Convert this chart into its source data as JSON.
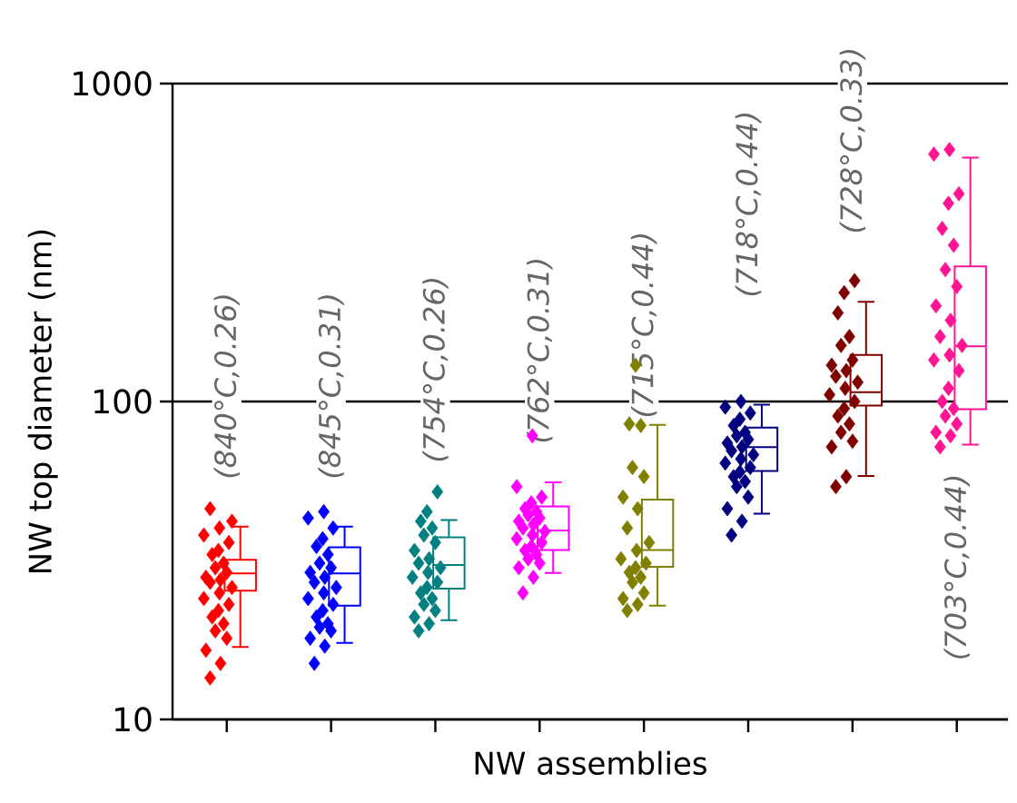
{
  "chart_data": {
    "type": "box",
    "xlabel": "NW assemblies",
    "ylabel": "NW top diameter (nm)",
    "categories": [
      null,
      null,
      null,
      null,
      null,
      null,
      null,
      null
    ],
    "ylim": [
      10,
      1000
    ],
    "yticks": [
      10,
      100,
      1000
    ],
    "log": true,
    "grid": "y",
    "tick_labels": "y",
    "marker": "diamond",
    "colors": [
      "#ff0000",
      "#0000ff",
      "#008080",
      "#ff00ff",
      "#808000",
      "#000080",
      "#800000",
      "#ff1493"
    ],
    "boxes": [
      {
        "low": 16.9,
        "q1": 25.4,
        "median": 28.8,
        "q3": 31.8,
        "high": 40.4
      },
      {
        "low": 17.4,
        "q1": 22.8,
        "median": 28.8,
        "q3": 34.8,
        "high": 40.4
      },
      {
        "low": 20.5,
        "q1": 25.8,
        "median": 30.6,
        "q3": 37.4,
        "high": 42.4
      },
      {
        "low": 28.9,
        "q1": 34.1,
        "median": 39.3,
        "q3": 46.8,
        "high": 55.7
      },
      {
        "low": 22.8,
        "q1": 30.2,
        "median": 34.1,
        "q3": 49.1,
        "high": 84.4
      },
      {
        "low": 44.4,
        "q1": 60.4,
        "median": 71.9,
        "q3": 82.8,
        "high": 97.7
      },
      {
        "low": 58.3,
        "q1": 97,
        "median": 107,
        "q3": 140,
        "high": 206
      },
      {
        "low": 73.2,
        "q1": 94.5,
        "median": 149,
        "q3": 266,
        "high": 585
      }
    ],
    "series": [
      {
        "type": "scatter",
        "colors": [
          "#ff0000",
          "#0000ff",
          "#008080",
          "#ff00ff",
          "#808000",
          "#000080",
          "#800000",
          "#ff1493"
        ],
        "values": [
          13.5,
          15,
          19,
          25,
          22,
          38,
          54,
          72
        ]
      },
      {
        "type": "scatter",
        "colors": [
          "#ff0000",
          "#0000ff",
          "#008080",
          "#ff00ff",
          "#808000",
          "#000080",
          "#800000",
          "#ff1493"
        ],
        "values": [
          15,
          17,
          20,
          28,
          23,
          42,
          58,
          78
        ]
      },
      {
        "type": "scatter",
        "colors": [
          "#ff0000",
          "#0000ff",
          "#008080",
          "#ff00ff",
          "#808000",
          "#000080",
          "#800000",
          "#ff1493"
        ],
        "values": [
          16.5,
          18,
          21,
          30,
          24,
          46,
          72,
          80
        ]
      },
      {
        "type": "scatter",
        "colors": [
          "#ff0000",
          "#0000ff",
          "#008080",
          "#ff00ff",
          "#808000",
          "#000080",
          "#800000",
          "#ff1493"
        ],
        "values": [
          18,
          19,
          22,
          31,
          25,
          50,
          75,
          85
        ]
      },
      {
        "type": "scatter",
        "colors": [
          "#ff0000",
          "#0000ff",
          "#008080",
          "#ff00ff",
          "#808000",
          "#000080",
          "#800000",
          "#ff1493"
        ],
        "values": [
          19,
          19.5,
          23,
          32,
          27,
          54,
          80,
          90
        ]
      },
      {
        "type": "scatter",
        "colors": [
          "#ff0000",
          "#0000ff",
          "#008080",
          "#ff00ff",
          "#808000",
          "#000080",
          "#800000",
          "#ff1493"
        ],
        "values": [
          20,
          20,
          24,
          33,
          28,
          56,
          85,
          95
        ]
      },
      {
        "type": "scatter",
        "colors": [
          "#ff0000",
          "#0000ff",
          "#008080",
          "#ff00ff",
          "#808000",
          "#000080",
          "#800000",
          "#ff1493"
        ],
        "values": [
          21,
          21,
          25,
          34,
          29,
          58,
          90,
          100
        ]
      },
      {
        "type": "scatter",
        "colors": [
          "#ff0000",
          "#0000ff",
          "#008080",
          "#ff00ff",
          "#808000",
          "#000080",
          "#800000",
          "#ff1493"
        ],
        "values": [
          22,
          22,
          26,
          35,
          30,
          60,
          95,
          110
        ]
      },
      {
        "type": "scatter",
        "colors": [
          "#ff0000",
          "#0000ff",
          "#008080",
          "#ff00ff",
          "#808000",
          "#000080",
          "#800000",
          "#ff1493"
        ],
        "values": [
          23,
          23,
          27,
          36,
          31,
          62,
          100,
          125
        ]
      },
      {
        "type": "scatter",
        "colors": [
          "#ff0000",
          "#0000ff",
          "#008080",
          "#ff00ff",
          "#808000",
          "#000080",
          "#800000",
          "#ff1493"
        ],
        "values": [
          24,
          24,
          28,
          37,
          32,
          64,
          105,
          135
        ]
      },
      {
        "type": "scatter",
        "colors": [
          "#ff0000",
          "#0000ff",
          "#008080",
          "#ff00ff",
          "#808000",
          "#000080",
          "#800000",
          "#ff1493"
        ],
        "values": [
          25,
          25,
          29,
          38,
          34,
          66,
          110,
          140
        ]
      },
      {
        "type": "scatter",
        "colors": [
          "#ff0000",
          "#0000ff",
          "#008080",
          "#ff00ff",
          "#808000",
          "#000080",
          "#800000",
          "#ff1493"
        ],
        "values": [
          26,
          26,
          30,
          39,
          36,
          68,
          115,
          150
        ]
      },
      {
        "type": "scatter",
        "colors": [
          "#ff0000",
          "#0000ff",
          "#008080",
          "#ff00ff",
          "#808000",
          "#000080",
          "#800000",
          "#ff1493"
        ],
        "values": [
          27,
          27,
          31,
          40,
          40,
          70,
          120,
          160
        ]
      },
      {
        "type": "scatter",
        "colors": [
          "#ff0000",
          "#0000ff",
          "#008080",
          "#ff00ff",
          "#808000",
          "#000080",
          "#800000",
          "#ff1493"
        ],
        "values": [
          27.5,
          28,
          32,
          41,
          46,
          72,
          125,
          180
        ]
      },
      {
        "type": "scatter",
        "colors": [
          "#ff0000",
          "#0000ff",
          "#008080",
          "#ff00ff",
          "#808000",
          "#000080",
          "#800000",
          "#ff1493"
        ],
        "values": [
          28,
          29,
          34,
          42,
          50,
          74,
          130,
          200
        ]
      },
      {
        "type": "scatter",
        "colors": [
          "#ff0000",
          "#0000ff",
          "#008080",
          "#ff00ff",
          "#808000",
          "#000080",
          "#800000",
          "#ff1493"
        ],
        "values": [
          29,
          30,
          36,
          43,
          58,
          76,
          135,
          230
        ]
      },
      {
        "type": "scatter",
        "colors": [
          "#ff0000",
          "#0000ff",
          "#008080",
          "#ff00ff",
          "#808000",
          "#000080",
          "#800000",
          "#ff1493"
        ],
        "values": [
          30,
          31,
          38,
          44,
          62,
          78,
          150,
          260
        ]
      },
      {
        "type": "scatter",
        "colors": [
          "#ff0000",
          "#0000ff",
          "#008080",
          "#ff00ff",
          "#808000",
          "#000080",
          "#800000",
          "#ff1493"
        ],
        "values": [
          31,
          33,
          40,
          45,
          84,
          80,
          160,
          310
        ]
      },
      {
        "type": "scatter",
        "colors": [
          "#ff0000",
          "#0000ff",
          "#008080",
          "#ff00ff",
          "#808000",
          "#000080",
          "#800000",
          "#ff1493"
        ],
        "values": [
          33,
          35,
          42,
          46,
          85,
          84,
          190,
          350
        ]
      },
      {
        "type": "scatter",
        "colors": [
          "#ff0000",
          "#0000ff",
          "#008080",
          "#ff00ff",
          "#808000",
          "#000080",
          "#800000",
          "#ff1493"
        ],
        "values": [
          34,
          37,
          45,
          48,
          130,
          88,
          220,
          420
        ]
      },
      {
        "type": "scatter",
        "colors": [
          "#ff0000",
          "#0000ff",
          "#008080",
          "#ff00ff",
          "#808000",
          "#000080",
          "#800000",
          "#ff1493"
        ],
        "values": [
          36,
          40,
          52,
          50,
          null,
          92,
          240,
          450
        ]
      },
      {
        "type": "scatter",
        "colors": [
          "#ff0000",
          "#0000ff",
          "#008080",
          "#ff00ff",
          "#808000",
          "#000080",
          "#800000",
          "#ff1493"
        ],
        "values": [
          38,
          43,
          null,
          54,
          null,
          96,
          null,
          600
        ]
      },
      {
        "type": "scatter",
        "colors": [
          "#ff0000",
          "#0000ff",
          "#008080",
          "#ff00ff",
          "#808000",
          "#000080",
          "#800000",
          "#ff1493"
        ],
        "values": [
          40,
          45,
          null,
          78,
          null,
          100,
          null,
          620
        ]
      },
      {
        "type": "scatter",
        "colors": [
          "#ff0000",
          "#0000ff",
          "#008080",
          "#ff00ff",
          "#808000",
          "#000080",
          "#800000",
          "#ff1493"
        ],
        "values": [
          42,
          null,
          null,
          null,
          null,
          null,
          null,
          null
        ]
      },
      {
        "type": "scatter",
        "colors": [
          "#ff0000",
          "#0000ff",
          "#008080",
          "#ff00ff",
          "#808000",
          "#000080",
          "#800000",
          "#ff1493"
        ],
        "values": [
          46,
          null,
          null,
          null,
          null,
          null,
          null,
          null
        ]
      }
    ],
    "annotations": [
      "(840°C,0.26)",
      "(845°C,0.31)",
      "(754°C,0.26)",
      "(762°C,0.31)",
      "(715°C,0.44)",
      "(718°C,0.44)",
      "(728°C,0.33)",
      "(703°C,0.44)"
    ]
  }
}
